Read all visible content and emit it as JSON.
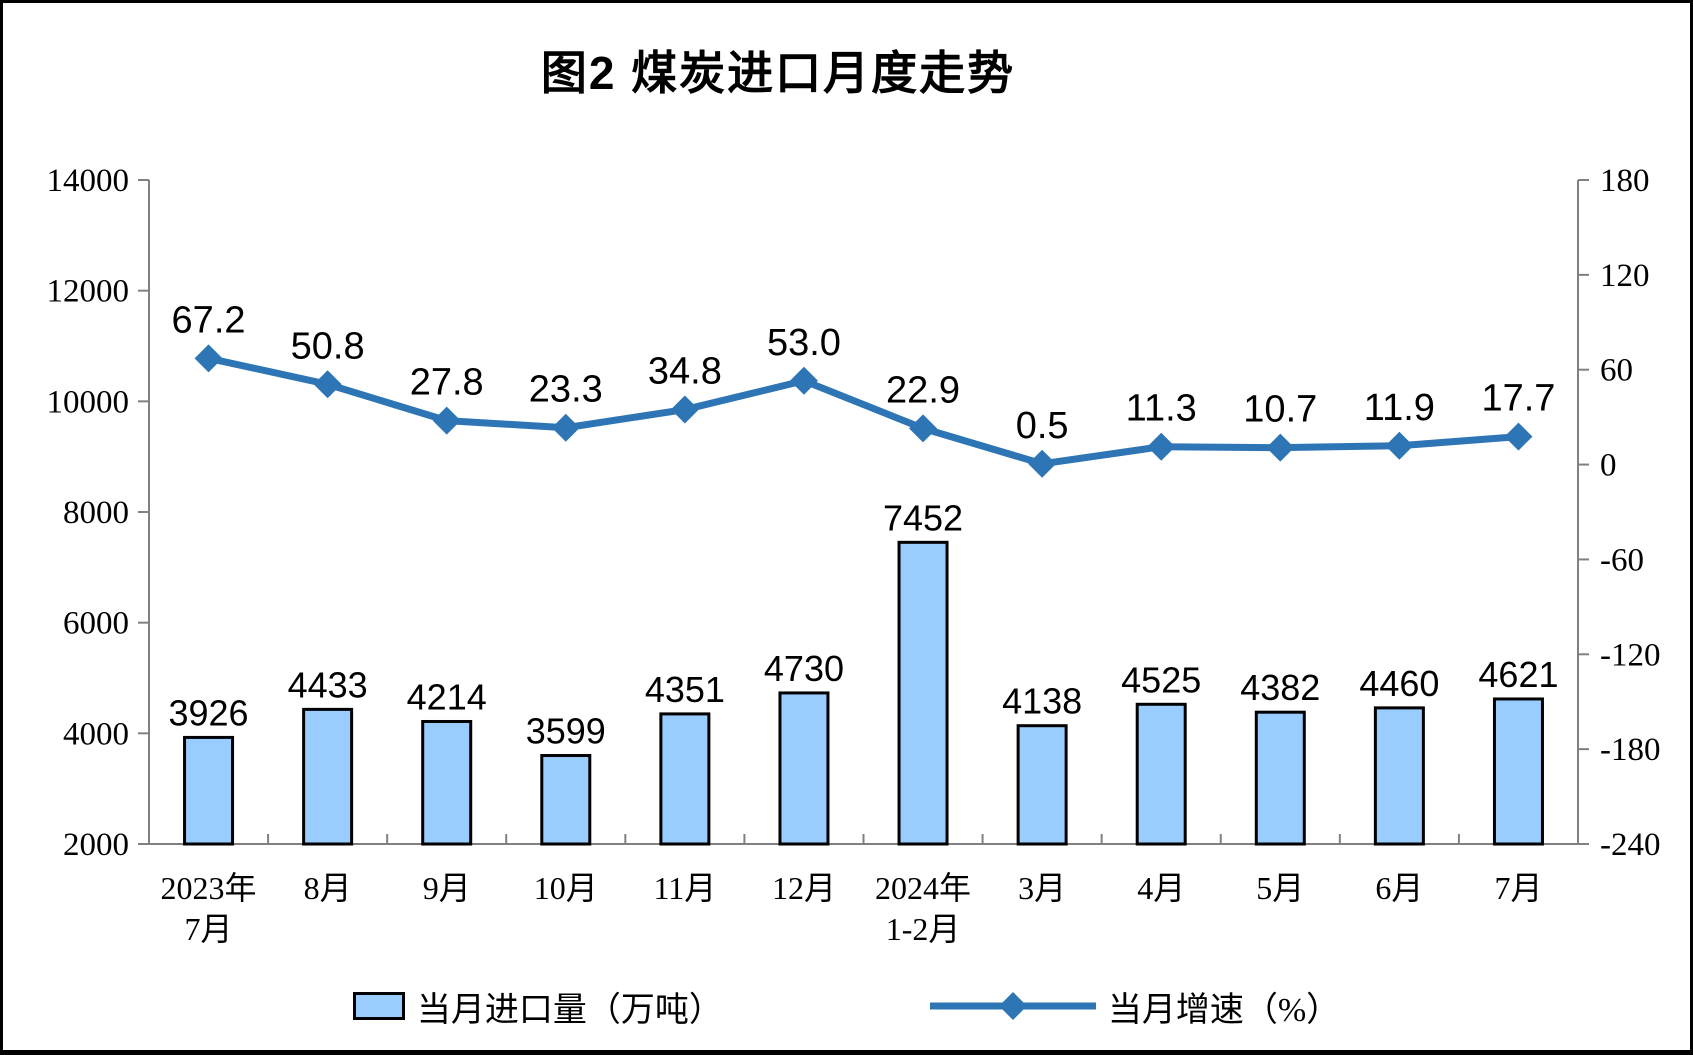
{
  "title": "图2 煤炭进口月度走势",
  "legend": {
    "bar": {
      "label": "当月进口量（万吨）"
    },
    "line": {
      "label": "当月增速（%）"
    }
  },
  "colors": {
    "bar_fill": "#99CCFF",
    "bar_stroke": "#000000",
    "line": "#2E75B6",
    "axis": "#808080",
    "label": "#000000",
    "background": "#FFFFFF",
    "frame_border": "#000000"
  },
  "chart_data": {
    "type": "combo",
    "title": "图2 煤炭进口月度走势",
    "categories": [
      "2023年\n7月",
      "8月",
      "9月",
      "10月",
      "11月",
      "12月",
      "2024年\n1-2月",
      "3月",
      "4月",
      "5月",
      "6月",
      "7月"
    ],
    "series": [
      {
        "name": "当月进口量（万吨）",
        "type": "bar",
        "axis": "left",
        "values": [
          3926,
          4433,
          4214,
          3599,
          4351,
          4730,
          7452,
          4138,
          4525,
          4382,
          4460,
          4621
        ],
        "labels": [
          "3926",
          "4433",
          "4214",
          "3599",
          "4351",
          "4730",
          "7452",
          "4138",
          "4525",
          "4382",
          "4460",
          "4621"
        ]
      },
      {
        "name": "当月增速（%）",
        "type": "line",
        "axis": "right",
        "values": [
          67.2,
          50.8,
          27.8,
          23.3,
          34.8,
          53.0,
          22.9,
          0.5,
          11.3,
          10.7,
          11.9,
          17.7
        ],
        "labels": [
          "67.2",
          "50.8",
          "27.8",
          "23.3",
          "34.8",
          "53.0",
          "22.9",
          "0.5",
          "11.3",
          "10.7",
          "11.9",
          "17.7"
        ]
      }
    ],
    "left_axis": {
      "min": 2000,
      "max": 14000,
      "ticks": [
        2000,
        4000,
        6000,
        8000,
        10000,
        12000,
        14000
      ]
    },
    "right_axis": {
      "min": -240,
      "max": 180,
      "ticks": [
        -240,
        -180,
        -120,
        -60,
        0,
        60,
        120,
        180
      ]
    },
    "grid": false,
    "legend_position": "bottom"
  }
}
